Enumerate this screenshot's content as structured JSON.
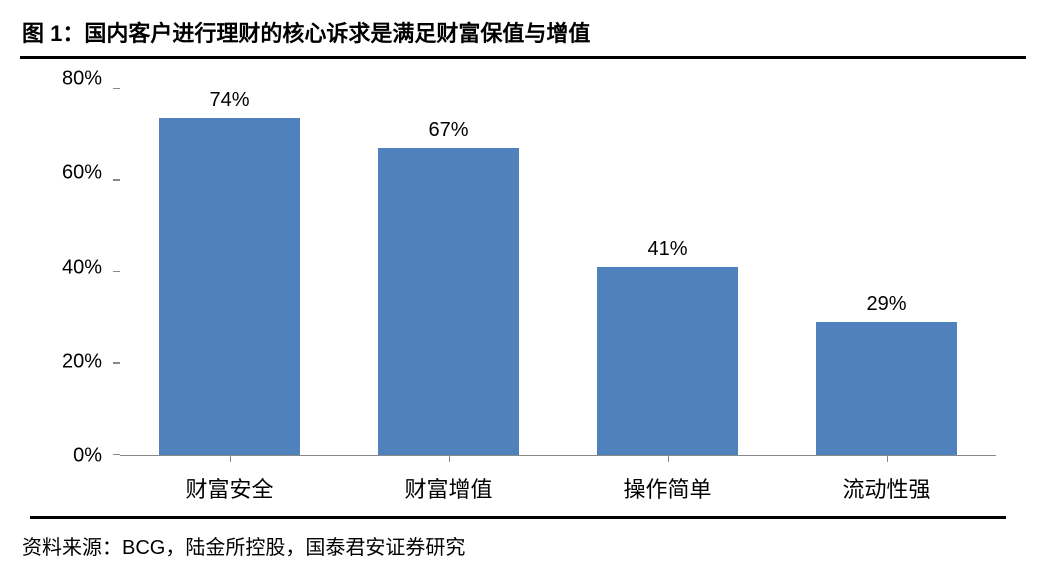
{
  "title": "图 1：国内客户进行理财的核心诉求是满足财富保值与增值",
  "source": "资料来源：BCG，陆金所控股，国泰君安证券研究",
  "chart": {
    "type": "bar",
    "categories": [
      "财富安全",
      "财富增值",
      "操作简单",
      "流动性强"
    ],
    "values": [
      74,
      67,
      41,
      29
    ],
    "value_labels": [
      "74%",
      "67%",
      "41%",
      "29%"
    ],
    "bar_color": "#4f81bd",
    "ylim": [
      0,
      80
    ],
    "ytick_step": 20,
    "yticks": [
      0,
      20,
      40,
      60,
      80
    ],
    "ytick_labels": [
      "0%",
      "20%",
      "40%",
      "60%",
      "80%"
    ],
    "background_color": "#ffffff",
    "axis_color": "#888888",
    "title_border_color": "#000000",
    "label_fontsize": 22,
    "value_fontsize": 20,
    "title_fontsize": 22,
    "bar_width": 0.64
  }
}
